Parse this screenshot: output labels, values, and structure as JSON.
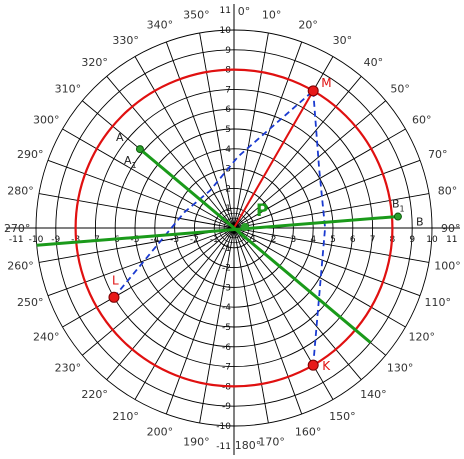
{
  "polar_grid": {
    "ring_count": 10,
    "ray_step_deg": 10,
    "angle_labels": [
      "0°",
      "10°",
      "20°",
      "30°",
      "40°",
      "50°",
      "60°",
      "70°",
      "80°",
      "90°",
      "100°",
      "110°",
      "120°",
      "130°",
      "140°",
      "150°",
      "160°",
      "170°",
      "180°",
      "190°",
      "200°",
      "210°",
      "220°",
      "230°",
      "240°",
      "250°",
      "260°",
      "270°",
      "280°",
      "290°",
      "300°",
      "310°",
      "320°",
      "330°",
      "340°",
      "350°"
    ],
    "highlighted_angle": {
      "label": "30°",
      "index": 3
    },
    "x_ticks": [
      "-11",
      "-10",
      "-9",
      "-8",
      "-7",
      "-6",
      "-5",
      "-4",
      "-3",
      "-2",
      "-1",
      "1",
      "2",
      "3",
      "4",
      "5",
      "6",
      "7",
      "8",
      "9",
      "10",
      "11"
    ],
    "x_tick_values": [
      -11,
      -10,
      -9,
      -8,
      -7,
      -6,
      -5,
      -4,
      -3,
      -2,
      -1,
      1,
      2,
      3,
      4,
      5,
      6,
      7,
      8,
      9,
      10,
      11
    ],
    "y_ticks": [
      "11",
      "10",
      "9",
      "8",
      "7",
      "6",
      "5",
      "4",
      "3",
      "2",
      "1",
      "-1",
      "-2",
      "-3",
      "-4",
      "-5",
      "-6",
      "-7",
      "-8",
      "-9",
      "-10",
      "-11"
    ],
    "y_tick_values": [
      11,
      10,
      9,
      8,
      7,
      6,
      5,
      4,
      3,
      2,
      1,
      -1,
      -2,
      -3,
      -4,
      -5,
      -6,
      -7,
      -8,
      -9,
      -10,
      -11
    ]
  },
  "red_circle": {
    "radius": 8,
    "color": "#e01010"
  },
  "center_label": "P",
  "points": {
    "M": {
      "label": "M",
      "r": 8,
      "theta_deg": 30
    },
    "K": {
      "label": "K",
      "r": 8,
      "theta_deg": 150
    },
    "L": {
      "label": "L",
      "r": 7,
      "theta_deg": 240
    }
  },
  "lines": {
    "line_A": {
      "label": "A",
      "sub_label": "A",
      "sub_index": "1",
      "from": [
        6.2,
        310
      ],
      "to": [
        9.0,
        130
      ]
    },
    "line_B": {
      "label": "B",
      "sub_label": "B",
      "sub_index": "1",
      "from": [
        8.3,
        86
      ],
      "to": [
        10.0,
        265
      ]
    }
  },
  "colors": {
    "green": "#1a9a1a",
    "red": "#e01010",
    "blue": "#1a3ad0",
    "grid": "#000000",
    "point_fill": "#e81818",
    "green_point": "#2aa02a"
  }
}
